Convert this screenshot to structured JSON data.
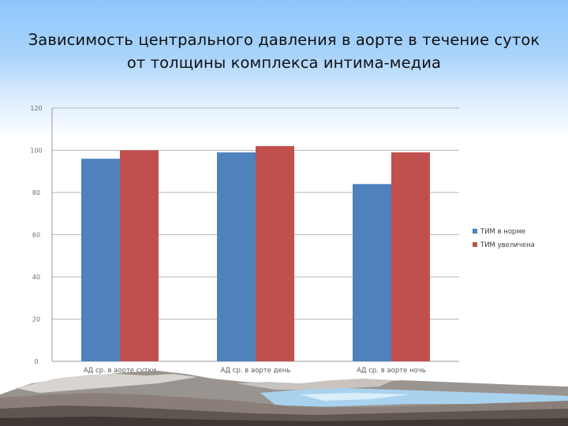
{
  "slide": {
    "title_line1": "Зависимость центрального давления в аорте в течение суток",
    "title_line2": "от толщины комплекса интима-медиа"
  },
  "chart_data": {
    "type": "bar",
    "categories": [
      "АД ср. в аорте сутки",
      "АД ср. в аорте день",
      "АД ср. в аорте ночь"
    ],
    "series": [
      {
        "name": "ТИМ в норме",
        "values": [
          96,
          99,
          84
        ],
        "color": "#4f81bd"
      },
      {
        "name": "ТИМ увеличена",
        "values": [
          100,
          102,
          99
        ],
        "color": "#c0504d"
      }
    ],
    "title": "",
    "xlabel": "",
    "ylabel": "",
    "ylim": [
      0,
      120
    ],
    "yticks": [
      "0",
      "20",
      "40",
      "60",
      "80",
      "100",
      "120"
    ],
    "grid": true,
    "legend_position": "right"
  }
}
